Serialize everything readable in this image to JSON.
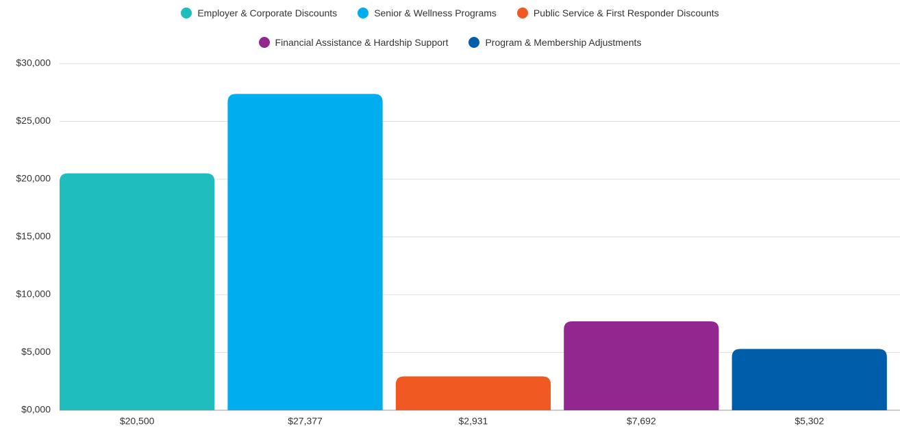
{
  "chart_data": {
    "type": "bar",
    "series": [
      {
        "name": "Employer & Corporate Discounts",
        "color": "#20bdbe",
        "values": [
          20500
        ],
        "value_labels": [
          "$20,500"
        ]
      },
      {
        "name": "Senior & Wellness Programs",
        "color": "#00aeef",
        "values": [
          27377
        ],
        "value_labels": [
          "$27,377"
        ]
      },
      {
        "name": "Public Service & First Responder Discounts",
        "color": "#f05a22",
        "values": [
          2931
        ],
        "value_labels": [
          "$2,931"
        ]
      },
      {
        "name": "Financial Assistance & Hardship Support",
        "color": "#92278f",
        "values": [
          7692
        ],
        "value_labels": [
          "$7,692"
        ]
      },
      {
        "name": "Program & Membership Adjustments",
        "color": "#005daa",
        "values": [
          5302
        ],
        "value_labels": [
          "$5,302"
        ]
      }
    ],
    "ylim": [
      0,
      30000
    ],
    "yticks": [
      {
        "value": 0,
        "label": "$0,000"
      },
      {
        "value": 5000,
        "label": "$5,000"
      },
      {
        "value": 10000,
        "label": "$10,000"
      },
      {
        "value": 15000,
        "label": "$15,000"
      },
      {
        "value": 20000,
        "label": "$20,000"
      },
      {
        "value": 25000,
        "label": "$25,000"
      },
      {
        "value": 30000,
        "label": "$30,000"
      }
    ],
    "grid": true,
    "legend": "top"
  }
}
